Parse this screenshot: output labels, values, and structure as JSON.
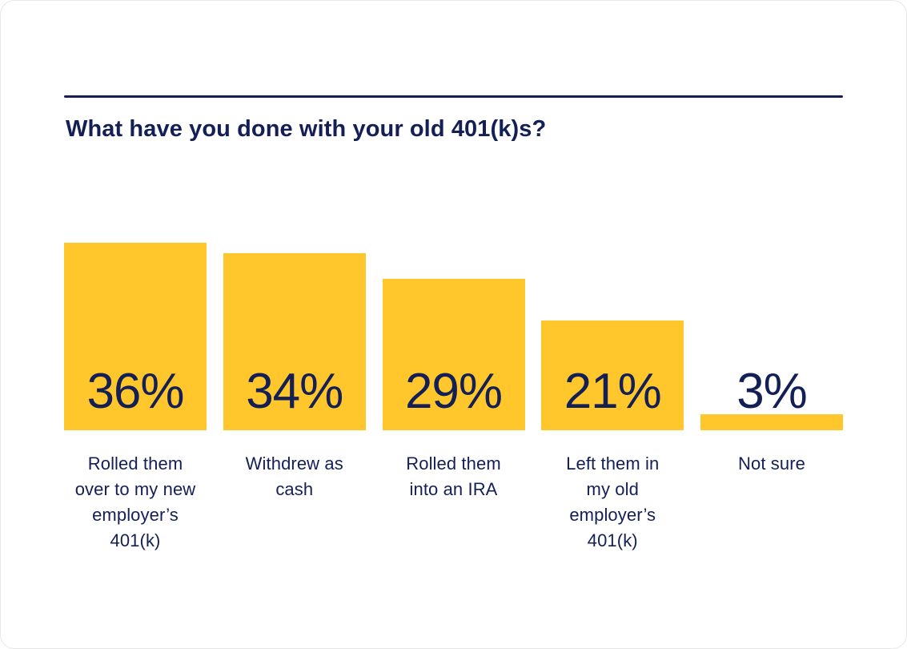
{
  "card": {
    "title": "What have you done with your old 401(k)s?"
  },
  "colors": {
    "bar": "#FFC72C",
    "navy": "#131F55"
  },
  "chart_data": {
    "type": "bar",
    "title": "What have you done with your old 401(k)s?",
    "categories": [
      "Rolled them over to my new employer’s 401(k)",
      "Withdrew as cash",
      "Rolled them into an IRA",
      "Left them in my old employer’s 401(k)",
      "Not sure"
    ],
    "values": [
      36,
      34,
      29,
      21,
      3
    ],
    "value_labels": [
      "36%",
      "34%",
      "29%",
      "21%",
      "3%"
    ],
    "category_display_lines": [
      "Rolled them\nover to my new\nemployer’s\n401(k)",
      "Withdrew as\ncash",
      "Rolled them\ninto an IRA",
      "Left them in\nmy old\nemployer’s\n401(k)",
      "Not sure"
    ],
    "bar_color": "#FFC72C",
    "label_color": "#131F55",
    "xlabel": "",
    "ylabel": "",
    "ylim": [
      0,
      36
    ],
    "grid": false,
    "legend": false,
    "orientation": "vertical",
    "value_label_position": "inside-bottom"
  }
}
